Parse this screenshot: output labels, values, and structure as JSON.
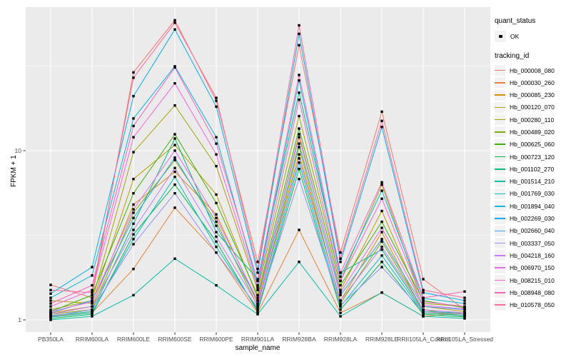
{
  "colors": {
    "panel_bg": "#EBEBEB",
    "grid": "#FFFFFF",
    "tick_label": "#4D4D4D",
    "tick_mark": "#333333",
    "point": "#000000",
    "legend_key_bg": "#F2F2F2"
  },
  "chart_data": {
    "type": "line",
    "xlabel": "sample_name",
    "ylabel": "FPKM + 1",
    "y_scale": "log10",
    "y_tick_labels": [
      "1",
      "10"
    ],
    "y_tick_values": [
      1,
      10
    ],
    "y_minor_values": [
      3.1623,
      31.623
    ],
    "ylim": [
      0.85,
      70
    ],
    "grid": "on",
    "legend_position": "right",
    "legend": {
      "quant_status": {
        "title": "quant_status",
        "items": [
          {
            "label": "OK",
            "symbol": "point"
          }
        ]
      },
      "tracking_id": {
        "title": "tracking_id"
      }
    },
    "categories": [
      "PB350LA",
      "RRIM600LA",
      "RRIM600LE",
      "RRIM600SE",
      "RRIM600PE",
      "RRIM901LA",
      "RRIM928BA",
      "RRIM928LA",
      "RRIM928LE",
      "RRII105LA_Control",
      "RRII105LA_Stressed"
    ],
    "series": [
      {
        "name": "Hb_000008_080",
        "color": "#F8766D",
        "values": [
          1.61,
          1.35,
          29,
          59,
          19.7,
          2.2,
          42,
          2.5,
          17,
          1.74,
          1.15
        ]
      },
      {
        "name": "Hb_000030_260",
        "color": "#EA8331",
        "values": [
          1.05,
          1.1,
          2.0,
          4.6,
          2.5,
          1.1,
          3.4,
          1.1,
          1.45,
          1.05,
          1.1
        ]
      },
      {
        "name": "Hb_000085_230",
        "color": "#D89000",
        "values": [
          1.1,
          1.2,
          4.8,
          7.5,
          4.2,
          1.25,
          9.5,
          1.3,
          3.3,
          1.1,
          1.08
        ]
      },
      {
        "name": "Hb_000120_070",
        "color": "#C09B00",
        "values": [
          1.3,
          1.25,
          6.8,
          10.8,
          5.5,
          1.35,
          12,
          1.5,
          4.4,
          1.2,
          1.12
        ]
      },
      {
        "name": "Hb_000280_110",
        "color": "#A3A500",
        "values": [
          1.15,
          1.3,
          9.8,
          18.5,
          8.1,
          1.5,
          16,
          1.7,
          6.3,
          1.25,
          1.2
        ]
      },
      {
        "name": "Hb_000489_020",
        "color": "#7CAE00",
        "values": [
          1.08,
          1.15,
          4.3,
          8.8,
          3.8,
          1.2,
          10.5,
          1.25,
          2.9,
          1.15,
          1.05
        ]
      },
      {
        "name": "Hb_000625_060",
        "color": "#39B600",
        "values": [
          1.12,
          1.4,
          5.6,
          12.5,
          4.9,
          1.4,
          13.5,
          1.6,
          3.8,
          1.3,
          1.18
        ]
      },
      {
        "name": "Hb_000723_120",
        "color": "#00BB4E",
        "values": [
          1.02,
          1.08,
          3.2,
          6.3,
          2.9,
          1.12,
          7.8,
          1.15,
          2.2,
          1.08,
          1.04
        ]
      },
      {
        "name": "Hb_001102_270",
        "color": "#00BF7D",
        "values": [
          1.06,
          1.12,
          3.7,
          11.8,
          3.3,
          1.74,
          22,
          1.9,
          2.6,
          1.12,
          1.1
        ]
      },
      {
        "name": "Hb_001514_210",
        "color": "#00C1A3",
        "values": [
          1.0,
          1.05,
          1.4,
          2.3,
          1.6,
          1.08,
          2.2,
          1.05,
          1.45,
          1.05,
          1.02
        ]
      },
      {
        "name": "Hb_001769_030",
        "color": "#00BFC4",
        "values": [
          1.04,
          1.1,
          3.0,
          7.0,
          2.7,
          1.15,
          8.5,
          1.2,
          2.4,
          1.1,
          1.06
        ]
      },
      {
        "name": "Hb_001894_040",
        "color": "#00BAE0",
        "values": [
          1.35,
          1.83,
          15.5,
          31.5,
          12,
          1.6,
          26,
          1.8,
          5.8,
          1.34,
          1.25
        ]
      },
      {
        "name": "Hb_002269_030",
        "color": "#00B0F6",
        "values": [
          1.43,
          2.05,
          21,
          52,
          18.2,
          1.9,
          49,
          2.2,
          13.8,
          1.45,
          1.3
        ]
      },
      {
        "name": "Hb_002660_040",
        "color": "#35A2FF",
        "values": [
          1.1,
          1.3,
          4.0,
          9.1,
          3.6,
          1.3,
          11,
          1.4,
          3.0,
          1.2,
          1.15
        ]
      },
      {
        "name": "Hb_003337_050",
        "color": "#9590FF",
        "values": [
          1.05,
          1.15,
          2.8,
          5.6,
          2.5,
          1.18,
          6.8,
          1.22,
          2.05,
          1.12,
          1.08
        ]
      },
      {
        "name": "Hb_004218_160",
        "color": "#C77CFF",
        "values": [
          1.08,
          1.2,
          3.4,
          7.9,
          3.1,
          1.22,
          9.0,
          1.3,
          2.7,
          1.15,
          1.1
        ]
      },
      {
        "name": "Hb_006970_150",
        "color": "#E76BF3",
        "values": [
          1.12,
          1.28,
          4.5,
          10.0,
          4.0,
          1.3,
          12.5,
          1.45,
          3.5,
          1.22,
          1.16
        ]
      },
      {
        "name": "Hb_008215_010",
        "color": "#FA62DB",
        "values": [
          1.2,
          1.5,
          12,
          25,
          9.5,
          1.55,
          20,
          1.7,
          5.2,
          1.28,
          1.2
        ]
      },
      {
        "name": "Hb_008948_080",
        "color": "#FF62BC",
        "values": [
          1.25,
          1.6,
          14,
          31,
          11,
          1.7,
          28,
          1.9,
          6.5,
          1.35,
          1.47
        ]
      },
      {
        "name": "Hb_010578_050",
        "color": "#FF6A98",
        "values": [
          1.5,
          1.45,
          27,
          57,
          20.5,
          2.0,
          55,
          2.3,
          15,
          1.5,
          1.35
        ]
      }
    ]
  }
}
